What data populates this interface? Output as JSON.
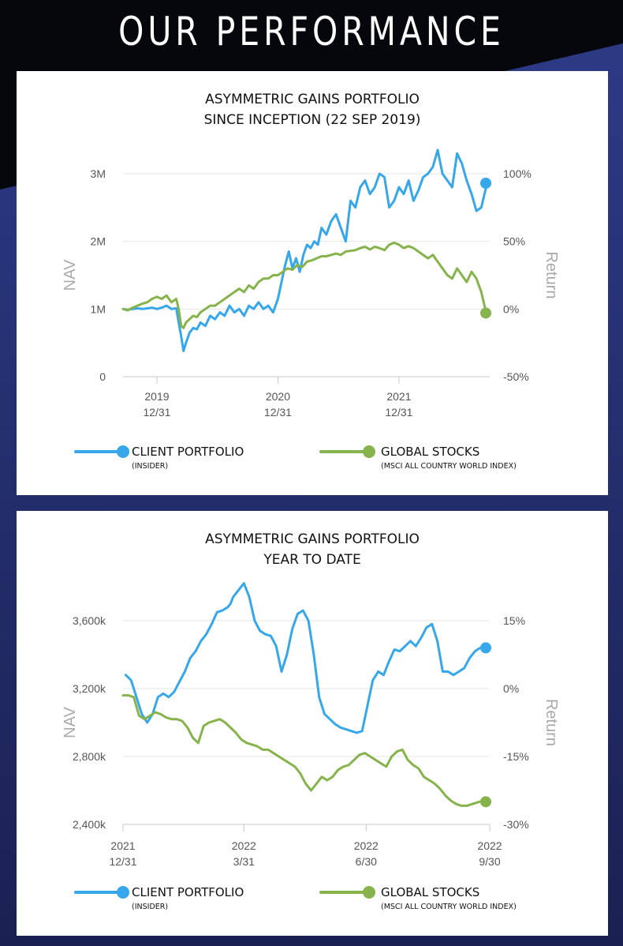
{
  "page": {
    "title": "OUR PERFORMANCE"
  },
  "colors": {
    "client": "#36a7ea",
    "global": "#86b34b",
    "background_accent": "#2a3a7a"
  },
  "legend": {
    "client_label": "CLIENT PORTFOLIO",
    "client_sub": "(INSIDER)",
    "global_label": "GLOBAL STOCKS",
    "global_sub": "(MSCI ALL COUNTRY WORLD INDEX)"
  },
  "chart_data": [
    {
      "type": "line",
      "title": "ASYMMETRIC GAINS PORTFOLIO",
      "subtitle": "SINCE INCEPTION (22 SEP 2019)",
      "ylabel": "NAV",
      "y2label": "Return",
      "ylim": [
        0,
        3000000
      ],
      "y2lim": [
        -50,
        100
      ],
      "yticks": [
        0,
        1000000,
        2000000,
        3000000
      ],
      "ytick_labels": [
        "0",
        "1M",
        "2M",
        "3M"
      ],
      "y2ticks": [
        -50,
        0,
        50,
        100
      ],
      "y2tick_labels": [
        "-50%",
        "0%",
        "50%",
        "100%"
      ],
      "xlim": [
        2019.72,
        2022.75
      ],
      "xticks": [
        2020.0,
        2021.0,
        2022.0
      ],
      "xtick_labels": [
        [
          "2019",
          "12/31"
        ],
        [
          "2020",
          "12/31"
        ],
        [
          "2021",
          "12/31"
        ]
      ],
      "grid": true,
      "series": [
        {
          "name": "CLIENT PORTFOLIO",
          "color": "#36a7ea",
          "x": [
            2019.72,
            2019.76,
            2019.8,
            2019.84,
            2019.88,
            2019.92,
            2019.96,
            2020.0,
            2020.04,
            2020.08,
            2020.12,
            2020.16,
            2020.18,
            2020.2,
            2020.22,
            2020.24,
            2020.27,
            2020.3,
            2020.33,
            2020.36,
            2020.4,
            2020.44,
            2020.48,
            2020.52,
            2020.56,
            2020.6,
            2020.64,
            2020.68,
            2020.72,
            2020.76,
            2020.8,
            2020.84,
            2020.88,
            2020.92,
            2020.96,
            2021.0,
            2021.03,
            2021.06,
            2021.09,
            2021.12,
            2021.15,
            2021.18,
            2021.21,
            2021.24,
            2021.27,
            2021.3,
            2021.33,
            2021.36,
            2021.4,
            2021.44,
            2021.48,
            2021.52,
            2021.56,
            2021.6,
            2021.64,
            2021.68,
            2021.72,
            2021.76,
            2021.8,
            2021.84,
            2021.88,
            2021.92,
            2021.96,
            2022.0,
            2022.04,
            2022.08,
            2022.12,
            2022.16,
            2022.2,
            2022.24,
            2022.28,
            2022.32,
            2022.36,
            2022.4,
            2022.44,
            2022.48,
            2022.52,
            2022.56,
            2022.6,
            2022.64,
            2022.68,
            2022.72
          ],
          "y": [
            1000000,
            990000,
            1000000,
            1010000,
            1000000,
            1010000,
            1020000,
            1000000,
            1020000,
            1050000,
            1000000,
            1010000,
            800000,
            600000,
            380000,
            500000,
            650000,
            720000,
            700000,
            800000,
            750000,
            900000,
            850000,
            950000,
            900000,
            1050000,
            950000,
            1000000,
            900000,
            1050000,
            1000000,
            1100000,
            1000000,
            1050000,
            950000,
            1150000,
            1400000,
            1650000,
            1850000,
            1600000,
            1750000,
            1550000,
            1800000,
            1950000,
            1900000,
            2000000,
            1950000,
            2200000,
            2100000,
            2300000,
            2400000,
            2200000,
            2000000,
            2600000,
            2500000,
            2800000,
            2900000,
            2700000,
            2800000,
            3000000,
            2950000,
            2500000,
            2600000,
            2800000,
            2700000,
            2900000,
            2600000,
            2750000,
            2950000,
            3000000,
            3100000,
            3350000,
            3000000,
            2900000,
            2800000,
            3300000,
            3150000,
            2900000,
            2700000,
            2450000,
            2500000,
            2800000
          ]
        },
        {
          "name": "GLOBAL STOCKS",
          "color": "#86b34b",
          "x": [
            2019.72,
            2019.76,
            2019.8,
            2019.84,
            2019.88,
            2019.92,
            2019.96,
            2020.0,
            2020.04,
            2020.08,
            2020.12,
            2020.16,
            2020.18,
            2020.2,
            2020.22,
            2020.24,
            2020.27,
            2020.3,
            2020.33,
            2020.36,
            2020.4,
            2020.44,
            2020.48,
            2020.52,
            2020.56,
            2020.6,
            2020.64,
            2020.68,
            2020.72,
            2020.76,
            2020.8,
            2020.84,
            2020.88,
            2020.92,
            2020.96,
            2021.0,
            2021.04,
            2021.08,
            2021.12,
            2021.16,
            2021.2,
            2021.24,
            2021.28,
            2021.32,
            2021.36,
            2021.4,
            2021.44,
            2021.48,
            2021.52,
            2021.56,
            2021.6,
            2021.64,
            2021.68,
            2021.72,
            2021.76,
            2021.8,
            2021.84,
            2021.88,
            2021.92,
            2021.96,
            2022.0,
            2022.04,
            2022.08,
            2022.12,
            2022.16,
            2022.2,
            2022.24,
            2022.28,
            2022.32,
            2022.36,
            2022.4,
            2022.44,
            2022.48,
            2022.52,
            2022.56,
            2022.6,
            2022.64,
            2022.68,
            2022.72
          ],
          "y": [
            1000000,
            980000,
            1020000,
            1050000,
            1080000,
            1100000,
            1150000,
            1180000,
            1150000,
            1200000,
            1100000,
            1150000,
            1000000,
            750000,
            720000,
            800000,
            850000,
            900000,
            880000,
            950000,
            1000000,
            1050000,
            1050000,
            1100000,
            1150000,
            1200000,
            1250000,
            1300000,
            1250000,
            1350000,
            1300000,
            1400000,
            1450000,
            1450000,
            1500000,
            1500000,
            1550000,
            1600000,
            1580000,
            1650000,
            1620000,
            1700000,
            1720000,
            1750000,
            1780000,
            1780000,
            1800000,
            1820000,
            1800000,
            1850000,
            1860000,
            1870000,
            1900000,
            1920000,
            1880000,
            1920000,
            1900000,
            1870000,
            1950000,
            1980000,
            1950000,
            1900000,
            1930000,
            1900000,
            1850000,
            1800000,
            1750000,
            1800000,
            1700000,
            1600000,
            1500000,
            1450000,
            1600000,
            1500000,
            1400000,
            1550000,
            1450000,
            1250000,
            950000
          ]
        }
      ],
      "end_markers": {
        "client_return_pct": 93,
        "global_return_pct": -3
      }
    },
    {
      "type": "line",
      "title": "ASYMMETRIC GAINS PORTFOLIO",
      "subtitle": "YEAR TO DATE",
      "ylabel": "NAV",
      "y2label": "Return",
      "ylim": [
        2400000,
        3600000
      ],
      "y2lim": [
        -30,
        15
      ],
      "yticks": [
        2400000,
        2800000,
        3200000,
        3600000
      ],
      "ytick_labels": [
        "2,400k",
        "2,800k",
        "3,200k",
        "3,600k"
      ],
      "y2ticks": [
        -30,
        -15,
        0,
        15
      ],
      "y2tick_labels": [
        "-30%",
        "-15%",
        "0%",
        "15%"
      ],
      "xlim": [
        0,
        273
      ],
      "xticks": [
        0,
        90,
        181,
        273
      ],
      "xtick_labels": [
        [
          "2021",
          "12/31"
        ],
        [
          "2022",
          "3/31"
        ],
        [
          "2022",
          "6/30"
        ],
        [
          "2022",
          "9/30"
        ]
      ],
      "grid": true,
      "series": [
        {
          "name": "CLIENT PORTFOLIO",
          "color": "#36a7ea",
          "x": [
            2,
            6,
            10,
            14,
            18,
            22,
            26,
            30,
            34,
            38,
            42,
            46,
            50,
            54,
            58,
            62,
            66,
            70,
            74,
            78,
            80,
            82,
            86,
            90,
            94,
            98,
            102,
            106,
            110,
            114,
            118,
            122,
            126,
            130,
            134,
            138,
            142,
            146,
            150,
            154,
            158,
            162,
            166,
            170,
            174,
            178,
            182,
            186,
            190,
            194,
            198,
            202,
            206,
            210,
            214,
            218,
            222,
            226,
            230,
            234,
            238,
            242,
            246,
            250,
            254,
            258,
            262,
            266,
            270,
            273
          ],
          "y": [
            3280000,
            3250000,
            3150000,
            3050000,
            3000000,
            3050000,
            3150000,
            3170000,
            3150000,
            3180000,
            3240000,
            3300000,
            3380000,
            3420000,
            3480000,
            3520000,
            3580000,
            3650000,
            3660000,
            3680000,
            3700000,
            3740000,
            3780000,
            3820000,
            3740000,
            3600000,
            3540000,
            3520000,
            3510000,
            3450000,
            3300000,
            3400000,
            3550000,
            3640000,
            3660000,
            3600000,
            3400000,
            3150000,
            3050000,
            3020000,
            2990000,
            2970000,
            2960000,
            2950000,
            2940000,
            2950000,
            3100000,
            3250000,
            3300000,
            3280000,
            3360000,
            3430000,
            3420000,
            3450000,
            3480000,
            3450000,
            3500000,
            3560000,
            3580000,
            3480000,
            3300000,
            3300000,
            3280000,
            3300000,
            3320000,
            3380000,
            3420000,
            3440000,
            3430000,
            3430000
          ]
        },
        {
          "name": "GLOBAL STOCKS",
          "color": "#86b34b",
          "x": [
            0,
            4,
            8,
            12,
            16,
            20,
            24,
            28,
            32,
            36,
            40,
            44,
            48,
            52,
            56,
            60,
            64,
            68,
            72,
            76,
            80,
            84,
            88,
            92,
            96,
            100,
            104,
            108,
            112,
            116,
            120,
            124,
            128,
            132,
            136,
            140,
            144,
            148,
            152,
            156,
            160,
            164,
            168,
            172,
            176,
            180,
            184,
            188,
            192,
            196,
            200,
            204,
            208,
            212,
            216,
            220,
            224,
            228,
            232,
            236,
            240,
            244,
            248,
            252,
            256,
            260,
            264,
            268,
            273
          ],
          "y": [
            3160000,
            3160000,
            3150000,
            3040000,
            3020000,
            3040000,
            3060000,
            3050000,
            3030000,
            3020000,
            3020000,
            3010000,
            2970000,
            2910000,
            2880000,
            2980000,
            3000000,
            3010000,
            3020000,
            3000000,
            2970000,
            2940000,
            2900000,
            2880000,
            2870000,
            2860000,
            2840000,
            2840000,
            2820000,
            2800000,
            2780000,
            2760000,
            2740000,
            2700000,
            2640000,
            2600000,
            2640000,
            2680000,
            2660000,
            2680000,
            2720000,
            2740000,
            2750000,
            2780000,
            2810000,
            2820000,
            2800000,
            2780000,
            2760000,
            2740000,
            2800000,
            2830000,
            2840000,
            2780000,
            2750000,
            2730000,
            2680000,
            2660000,
            2640000,
            2610000,
            2570000,
            2540000,
            2520000,
            2510000,
            2510000,
            2520000,
            2530000,
            2540000,
            2540000
          ]
        }
      ],
      "end_markers": {
        "client_return_pct": 9,
        "global_return_pct": -25
      }
    }
  ]
}
